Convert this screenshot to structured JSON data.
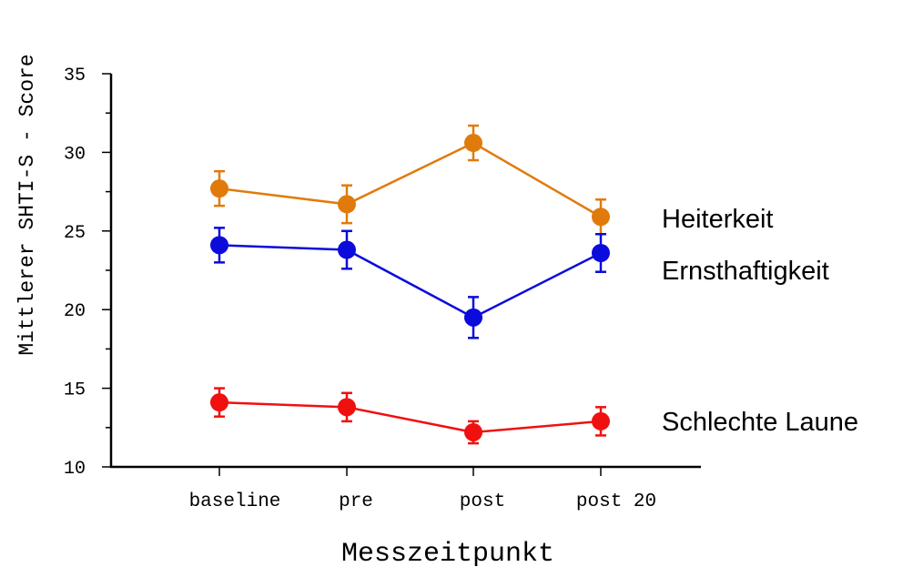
{
  "chart_data": {
    "type": "line",
    "categories": [
      "baseline",
      "pre",
      "post",
      "post 20"
    ],
    "xlabel": "Messzeitpunkt",
    "ylabel": "Mittlerer SHTI-S - Score",
    "ylim": [
      10,
      35
    ],
    "yticks": [
      10,
      15,
      20,
      25,
      30,
      35
    ],
    "grid": false,
    "legend": "right",
    "series": [
      {
        "name": "Heiterkeit",
        "color": "#e07b0b",
        "values": [
          27.7,
          26.7,
          30.6,
          25.9
        ],
        "error": [
          1.1,
          1.2,
          1.1,
          1.1
        ]
      },
      {
        "name": "Ernsthaftigkeit",
        "color": "#0b0bdc",
        "values": [
          24.1,
          23.8,
          19.5,
          23.6
        ],
        "error": [
          1.1,
          1.2,
          1.3,
          1.2
        ]
      },
      {
        "name": "Schlechte Laune",
        "color": "#f01010",
        "values": [
          14.1,
          13.8,
          12.2,
          12.9
        ],
        "error": [
          0.9,
          0.9,
          0.7,
          0.9
        ]
      }
    ]
  }
}
